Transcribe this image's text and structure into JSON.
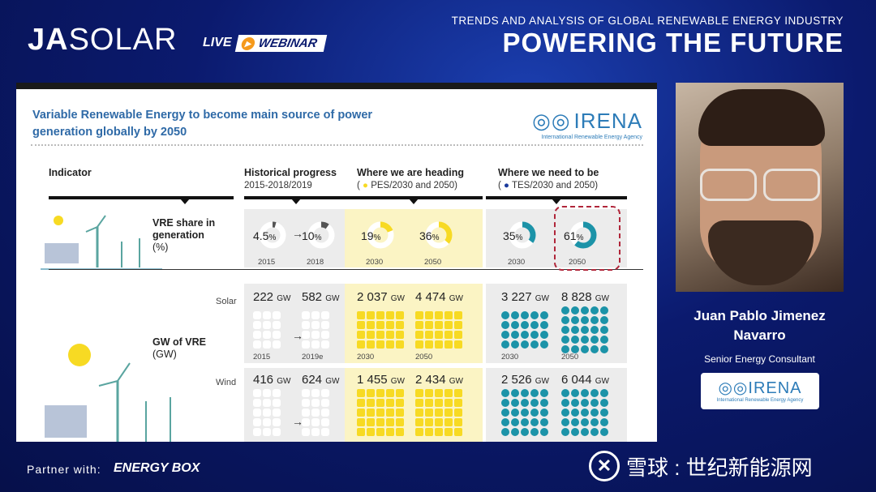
{
  "header": {
    "brand_ja": "JA",
    "brand_solar": "SOLAR",
    "live": "LIVE",
    "webinar": "WEBINAR",
    "trends": "TRENDS AND ANALYSIS OF GLOBAL RENEWABLE ENERGY INDUSTRY",
    "headline": "POWERING THE FUTURE"
  },
  "slide": {
    "title": "Variable Renewable Energy to become main source of power generation globally by 2050",
    "logo_name": "IRENA",
    "logo_sub": "International Renewable Energy Agency",
    "columns": {
      "indicator": "Indicator",
      "historical": "Historical progress",
      "historical_sub": "2015-2018/2019",
      "heading": "Where we are heading",
      "heading_sub": "PES/2030 and 2050)",
      "need": "Where we need to be",
      "need_sub": "TES/2030 and 2050)"
    },
    "vre_share": {
      "label": "VRE share in generation",
      "unit": "(%)",
      "cells": [
        {
          "value": "4.5",
          "pct": "%",
          "year": "2015",
          "fill": 0.045
        },
        {
          "value": "10",
          "pct": "%",
          "year": "2018",
          "fill": 0.1
        },
        {
          "value": "19",
          "pct": "%",
          "year": "2030",
          "fill": 0.19
        },
        {
          "value": "36",
          "pct": "%",
          "year": "2050",
          "fill": 0.36
        },
        {
          "value": "35",
          "pct": "%",
          "year": "2030",
          "fill": 0.35
        },
        {
          "value": "61",
          "pct": "%",
          "year": "2050",
          "fill": 0.61
        }
      ]
    },
    "gw_vre": {
      "label": "GW of VRE",
      "unit": "(GW)",
      "solar_label": "Solar",
      "wind_label": "Wind",
      "gw_unit": "GW",
      "solar": [
        {
          "value": "222",
          "year": "2015"
        },
        {
          "value": "582",
          "year": "2019e"
        },
        {
          "value": "2 037",
          "year": "2030"
        },
        {
          "value": "4 474",
          "year": "2050"
        },
        {
          "value": "3 227",
          "year": "2030"
        },
        {
          "value": "8 828",
          "year": "2050"
        }
      ],
      "wind": [
        {
          "value": "416"
        },
        {
          "value": "624"
        },
        {
          "value": "1 455"
        },
        {
          "value": "2 434"
        },
        {
          "value": "2 526"
        },
        {
          "value": "6 044"
        }
      ]
    }
  },
  "speaker": {
    "name_line1": "Juan Pablo Jimenez",
    "name_line2": "Navarro",
    "role": "Senior Energy Consultant",
    "logo_name": "IRENA",
    "logo_sub": "International Renewable Energy Agency"
  },
  "footer": {
    "partner": "Partner with:",
    "energybox": "ENERGY BOX",
    "watermark": "雪球 : 世纪新能源网"
  },
  "colors": {
    "teal": "#1c93a8",
    "gold": "#f7da23",
    "title_blue": "#2f6aa7",
    "highlight": "#b0263a"
  }
}
